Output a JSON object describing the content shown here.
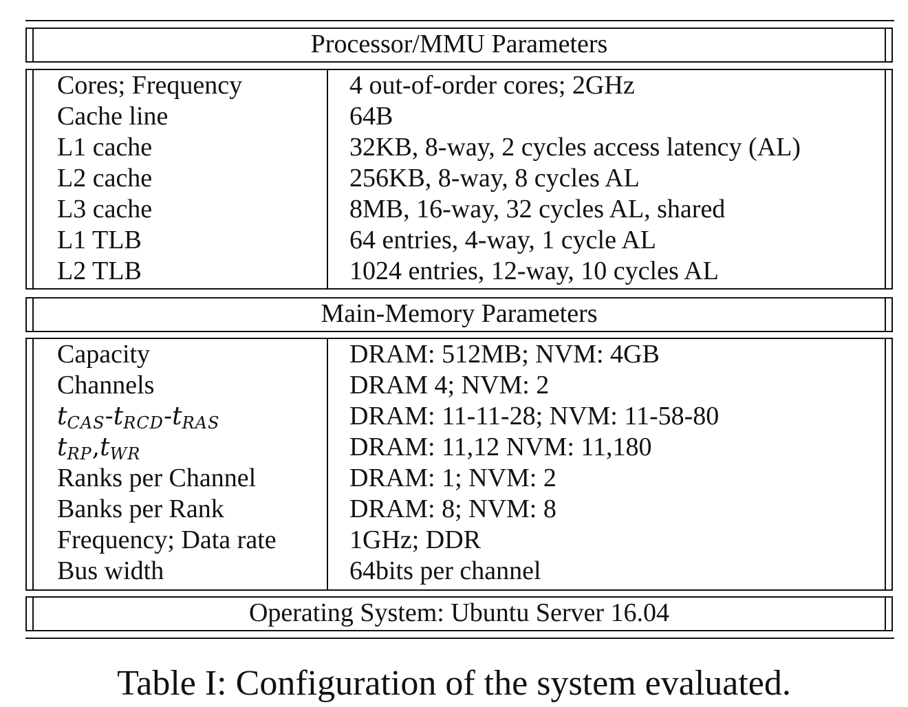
{
  "processor": {
    "title": "Processor/MMU Parameters",
    "rows": [
      {
        "name": "Cores; Frequency",
        "value": "4 out-of-order cores; 2GHz"
      },
      {
        "name": "Cache line",
        "value": "64B"
      },
      {
        "name": "L1 cache",
        "value": "32KB, 8-way, 2 cycles access latency (AL)"
      },
      {
        "name": "L2 cache",
        "value": "256KB, 8-way, 8 cycles AL"
      },
      {
        "name": "L3 cache",
        "value": "8MB, 16-way, 32 cycles AL, shared"
      },
      {
        "name": "L1 TLB",
        "value": "64 entries, 4-way, 1 cycle AL"
      },
      {
        "name": "L2 TLB",
        "value": "1024 entries, 12-way, 10 cycles AL"
      }
    ]
  },
  "memory": {
    "title": "Main-Memory Parameters",
    "rows": [
      {
        "name": "Capacity",
        "value": "DRAM: 512MB; NVM: 4GB"
      },
      {
        "name": "Channels",
        "value": "DRAM 4; NVM: 2"
      },
      {
        "name": "",
        "value": "DRAM: 11-11-28; NVM: 11-58-80"
      },
      {
        "name": "",
        "value": "DRAM: 11,12 NVM: 11,180"
      },
      {
        "name": "Ranks per Channel",
        "value": "DRAM: 1; NVM: 2"
      },
      {
        "name": "Banks per Rank",
        "value": "DRAM: 8; NVM: 8"
      },
      {
        "name": "Frequency; Data rate",
        "value": "1GHz; DDR"
      },
      {
        "name": "Bus width",
        "value": "64bits per channel"
      }
    ],
    "timing_symbols": {
      "t": "t",
      "cas": "CAS",
      "rcd": "RCD",
      "ras": "RAS",
      "dash": "-",
      "rp": "RP",
      "wr": "WR",
      "comma": ","
    }
  },
  "os": {
    "label": "Operating System: Ubuntu Server 16.04"
  },
  "caption": "Table I: Configuration of the system evaluated."
}
